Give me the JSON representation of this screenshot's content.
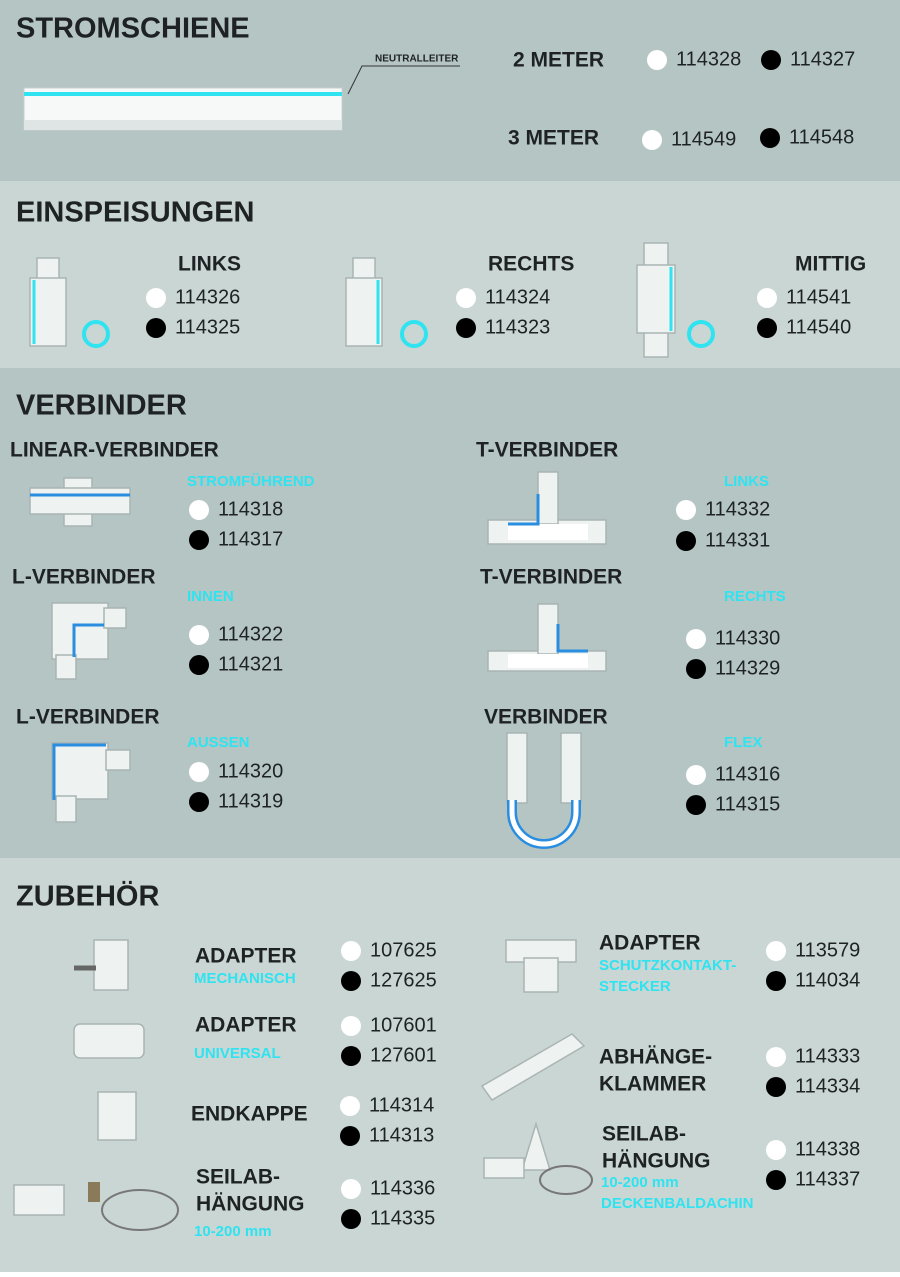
{
  "stromschiene": {
    "title": "STROMSCHIENE",
    "callout": "NEUTRALLEITER",
    "items": [
      {
        "label": "2 METER",
        "white": "114328",
        "black": "114327"
      },
      {
        "label": "3 METER",
        "white": "114549",
        "black": "114548"
      }
    ]
  },
  "einspeisungen": {
    "title": "EINSPEISUNGEN",
    "items": [
      {
        "label": "LINKS",
        "white": "114326",
        "black": "114325"
      },
      {
        "label": "RECHTS",
        "white": "114324",
        "black": "114323"
      },
      {
        "label": "MITTIG",
        "white": "114541",
        "black": "114540"
      }
    ]
  },
  "verbinder": {
    "title": "VERBINDER",
    "items": [
      {
        "label": "LINEAR-VERBINDER",
        "sublabel": "STROMFÜHREND",
        "white": "114318",
        "black": "114317"
      },
      {
        "label": "T-VERBINDER",
        "sublabel": "LINKS",
        "white": "114332",
        "black": "114331"
      },
      {
        "label": "L-VERBINDER",
        "sublabel": "INNEN",
        "white": "114322",
        "black": "114321"
      },
      {
        "label": "T-VERBINDER",
        "sublabel": "RECHTS",
        "white": "114330",
        "black": "114329"
      },
      {
        "label": "L-VERBINDER",
        "sublabel": "AUSSEN",
        "white": "114320",
        "black": "114319"
      },
      {
        "label": "VERBINDER",
        "sublabel": "FLEX",
        "white": "114316",
        "black": "114315"
      }
    ]
  },
  "zubehoer": {
    "title": "ZUBEHÖR",
    "items": [
      {
        "label": [
          "ADAPTER"
        ],
        "sublabel": [
          "MECHANISCH"
        ],
        "white": "107625",
        "black": "127625"
      },
      {
        "label": [
          "ADAPTER"
        ],
        "sublabel": [
          "UNIVERSAL"
        ],
        "white": "107601",
        "black": "127601"
      },
      {
        "label": [
          "ENDKAPPE"
        ],
        "white": "114314",
        "black": "114313"
      },
      {
        "label": [
          "SEILAB-",
          "HÄNGUNG"
        ],
        "sublabel": [
          "10-200 mm"
        ],
        "white": "114336",
        "black": "114335"
      },
      {
        "label": [
          "ADAPTER"
        ],
        "sublabel": [
          "SCHUTZKONTAKT-",
          "STECKER"
        ],
        "white": "113579",
        "black": "114034"
      },
      {
        "label": [
          "ABHÄNGE-",
          "KLAMMER"
        ],
        "white": "114333",
        "black": "114334"
      },
      {
        "label": [
          "SEILAB-",
          "HÄNGUNG"
        ],
        "sublabel": [
          "10-200 mm",
          "DECKENBALDACHIN"
        ],
        "white": "114338",
        "black": "114337"
      }
    ]
  }
}
